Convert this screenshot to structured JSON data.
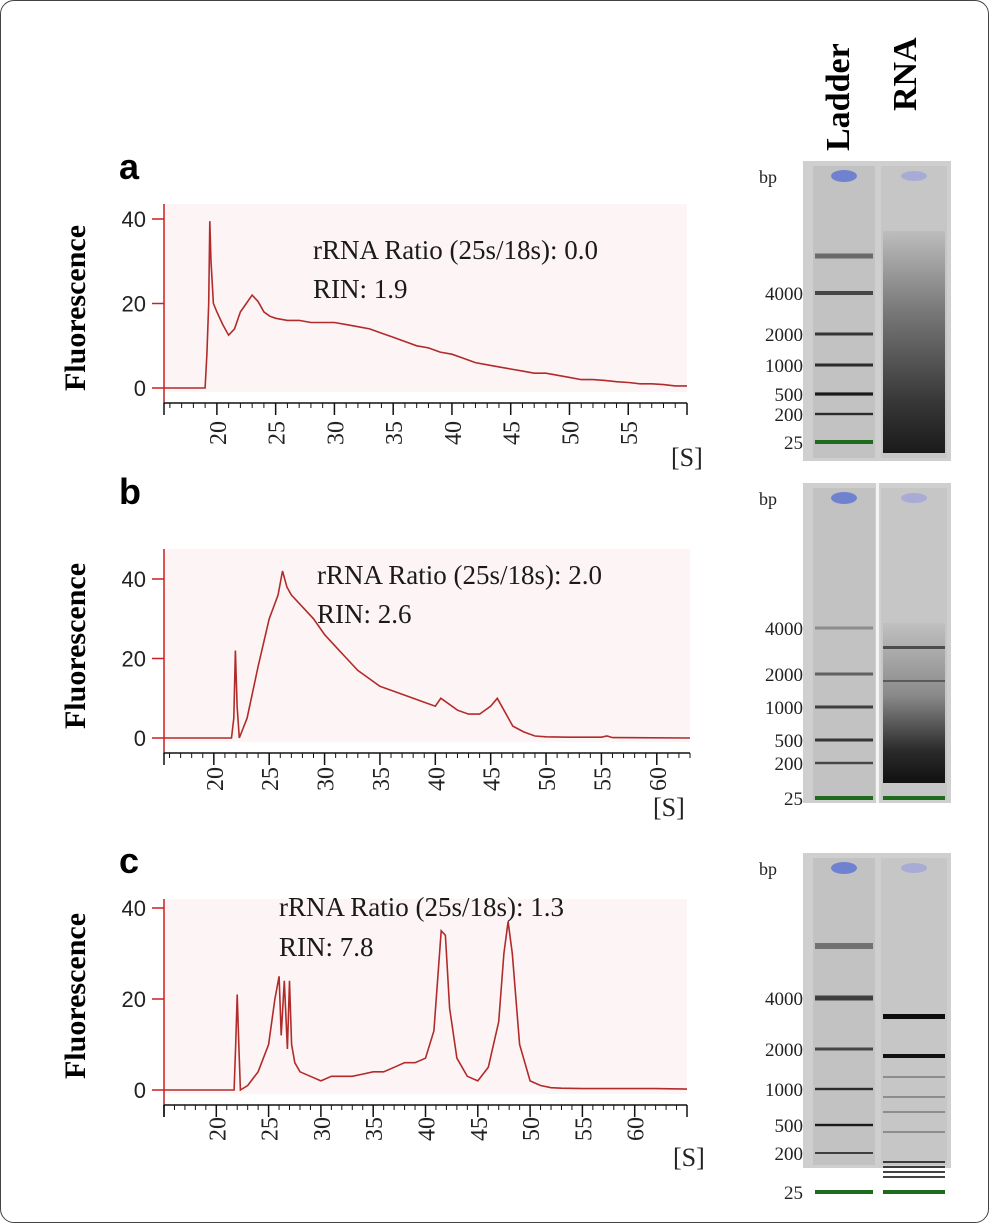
{
  "gel": {
    "header_ladder": "Ladder",
    "header_rna": "RNA",
    "bp_label": "bp",
    "ladder_color": "#6f82cf",
    "rna_color": "#a8abd6",
    "marker_color": "#1e6b1e"
  },
  "colors": {
    "axis": "#cc1f1f",
    "trace": "#b22b2b",
    "plot_bg": "#fdf5f5"
  },
  "chart_data": [
    {
      "type": "line",
      "panel": "a",
      "ylabel": "Fluorescence",
      "x_unit": "[S]",
      "x_ticks": [
        "20",
        "25",
        "30",
        "35",
        "40",
        "45",
        "50",
        "55"
      ],
      "y_ticks": [
        "0",
        "20",
        "40"
      ],
      "xlim": [
        15.5,
        60
      ],
      "ylim": [
        0,
        45
      ],
      "annotation": "rRNA Ratio (25s/18s): 0.0",
      "rin": "RIN: 1.9",
      "series": [
        {
          "x": [
            15.5,
            19.0,
            19.15,
            19.3,
            19.4,
            19.5,
            19.7,
            20,
            20.5,
            21,
            21.5,
            22,
            22.5,
            23,
            23.5,
            24,
            24.5,
            25,
            26,
            27,
            28,
            29,
            30,
            31,
            32,
            33,
            34,
            35,
            36,
            37,
            38,
            39,
            40,
            41,
            42,
            43,
            44,
            45,
            46,
            47,
            48,
            49,
            50,
            51,
            52,
            53,
            54,
            55,
            56,
            57,
            58,
            59,
            60
          ],
          "y": [
            0,
            0,
            8,
            20,
            39.5,
            30,
            20,
            18,
            15,
            12.5,
            14,
            18,
            20,
            22,
            20.5,
            18,
            17,
            16.5,
            16,
            16,
            15.5,
            15.5,
            15.5,
            15,
            14.5,
            14,
            13,
            12,
            11,
            10,
            9.5,
            8.5,
            8,
            7,
            6,
            5.5,
            5,
            4.5,
            4,
            3.5,
            3.5,
            3,
            2.5,
            2,
            2,
            1.8,
            1.5,
            1.3,
            1,
            1,
            0.8,
            0.5,
            0.5
          ]
        }
      ],
      "ladder_bp_labels": [
        "4000",
        "2000",
        "1000",
        "500",
        "200",
        "25"
      ]
    },
    {
      "type": "line",
      "panel": "b",
      "ylabel": "Fluorescence",
      "x_unit": "[S]",
      "x_ticks": [
        "20",
        "25",
        "30",
        "35",
        "40",
        "45",
        "50",
        "55",
        "60"
      ],
      "y_ticks": [
        "0",
        "20",
        "40"
      ],
      "xlim": [
        15.5,
        63
      ],
      "ylim": [
        0,
        46
      ],
      "annotation": "rRNA Ratio (25s/18s): 2.0",
      "rin": "RIN: 2.6",
      "series": [
        {
          "x": [
            15.5,
            21.6,
            21.8,
            21.95,
            22.1,
            22.3,
            23,
            24,
            25,
            25.8,
            26.2,
            26.6,
            27,
            28,
            29,
            30,
            31,
            32,
            33,
            34,
            35,
            36,
            37,
            38,
            39,
            40,
            40.5,
            41,
            42,
            43,
            44,
            45,
            45.6,
            46,
            47,
            48,
            49,
            50,
            52,
            55,
            55.5,
            56,
            63
          ],
          "y": [
            0,
            0,
            5,
            22,
            8,
            0,
            5,
            18,
            30,
            36,
            42,
            38,
            36,
            33,
            30,
            26,
            23,
            20,
            17,
            15,
            13,
            12,
            11,
            10,
            9,
            8,
            10,
            9,
            7,
            6,
            6,
            8,
            10,
            8,
            3,
            1.5,
            0.5,
            0.3,
            0.2,
            0.2,
            0.5,
            0.1,
            0
          ]
        }
      ],
      "ladder_bp_labels": [
        "4000",
        "2000",
        "1000",
        "500",
        "200",
        "25"
      ]
    },
    {
      "type": "line",
      "panel": "c",
      "ylabel": "Fluorescence",
      "x_unit": "[S]",
      "x_ticks": [
        "20",
        "25",
        "30",
        "35",
        "40",
        "45",
        "50",
        "55",
        "60"
      ],
      "y_ticks": [
        "0",
        "20",
        "40"
      ],
      "xlim": [
        15,
        65
      ],
      "ylim": [
        0,
        43
      ],
      "annotation": "rRNA Ratio (25s/18s): 1.3",
      "rin": "RIN: 7.8",
      "series": [
        {
          "x": [
            15,
            21.7,
            21.85,
            22,
            22.15,
            22.3,
            23,
            24,
            25,
            25.6,
            26,
            26.2,
            26.5,
            26.8,
            27,
            27.2,
            27.5,
            28,
            29,
            30,
            31,
            32,
            33,
            34,
            35,
            36,
            37,
            38,
            39,
            40,
            40.8,
            41.5,
            41.9,
            42.3,
            43,
            44,
            45,
            46,
            47,
            47.5,
            47.9,
            48.3,
            49,
            50,
            51,
            52,
            53,
            55,
            58,
            60,
            62,
            65
          ],
          "y": [
            0,
            0,
            10,
            21,
            10,
            0,
            1,
            4,
            10,
            20,
            25,
            12,
            24,
            9,
            24,
            10,
            6,
            4,
            3,
            2,
            3,
            3,
            3,
            3.5,
            4,
            4,
            5,
            6,
            6,
            7,
            13,
            35,
            34,
            18,
            7,
            3,
            2,
            5,
            15,
            30,
            37,
            30,
            10,
            2,
            1,
            0.5,
            0.4,
            0.3,
            0.3,
            0.3,
            0.3,
            0.2
          ]
        }
      ],
      "ladder_bp_labels": [
        "4000",
        "2000",
        "1000",
        "500",
        "200",
        "25"
      ]
    }
  ]
}
